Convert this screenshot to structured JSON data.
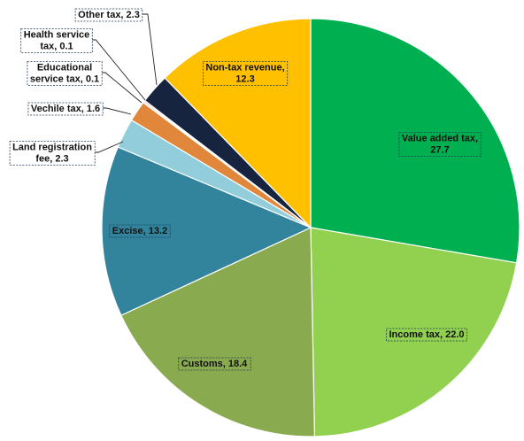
{
  "chart_data": {
    "type": "pie",
    "title": "",
    "slices": [
      {
        "label": "Value added tax, 27.7",
        "lines": [
          "Value added tax,",
          "27.7"
        ],
        "name": "Value added tax",
        "value": 27.7,
        "color": "#00b050",
        "placement": "inside"
      },
      {
        "label": "Income tax, 22.0",
        "lines": [
          "Income tax, 22.0"
        ],
        "name": "Income tax",
        "value": 22.0,
        "color": "#92d050",
        "placement": "inside"
      },
      {
        "label": "Customs, 18.4",
        "lines": [
          "Customs, 18.4"
        ],
        "name": "Customs",
        "value": 18.4,
        "color": "#8aaa50",
        "placement": "inside"
      },
      {
        "label": "Excise, 13.2",
        "lines": [
          "Excise, 13.2"
        ],
        "name": "Excise",
        "value": 13.2,
        "color": "#31849b",
        "placement": "inside"
      },
      {
        "label": "Land registration fee, 2.3",
        "lines": [
          "Land registration",
          "fee, 2.3"
        ],
        "name": "Land registration fee",
        "value": 2.3,
        "color": "#92cddc",
        "placement": "outside"
      },
      {
        "label": "Vechile tax, 1.6",
        "lines": [
          "Vechile tax, 1.6"
        ],
        "name": "Vechile tax",
        "value": 1.6,
        "color": "#e0873c",
        "placement": "outside"
      },
      {
        "label": "Educational service tax, 0.1",
        "lines": [
          "Educational",
          "service tax, 0.1"
        ],
        "name": "Educational service tax",
        "value": 0.1,
        "color": "#7f7f7f",
        "placement": "outside"
      },
      {
        "label": "Health service tax, 0.1",
        "lines": [
          "Health service",
          "tax, 0.1"
        ],
        "name": "Health service tax",
        "value": 0.1,
        "color": "#e8334a",
        "placement": "outside"
      },
      {
        "label": "Other tax, 2.3",
        "lines": [
          "Other tax, 2.3"
        ],
        "name": "Other tax",
        "value": 2.3,
        "color": "#17243f",
        "placement": "outside"
      },
      {
        "label": "Non-tax revenue, 12.3",
        "lines": [
          "Non-tax revenue,",
          "12.3"
        ],
        "name": "Non-tax revenue",
        "value": 12.3,
        "color": "#ffc000",
        "placement": "inside"
      }
    ],
    "start_angle": "12 o'clock",
    "direction": "clockwise",
    "legend": "none"
  }
}
